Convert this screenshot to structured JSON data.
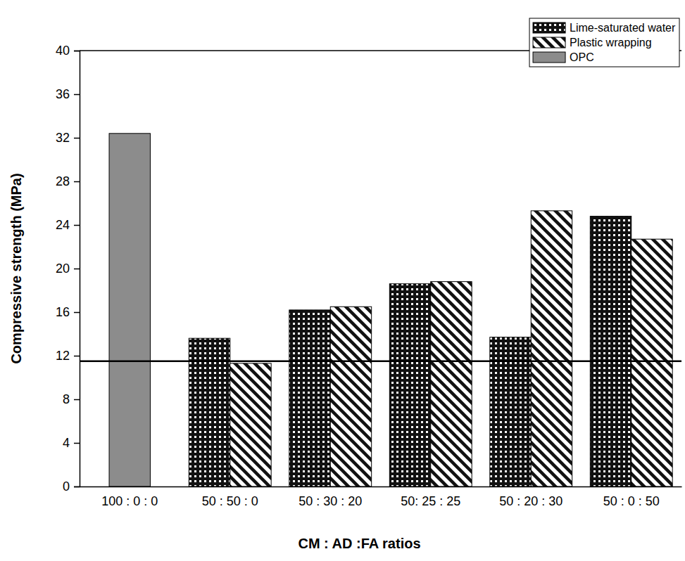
{
  "chart_data": {
    "type": "bar",
    "x_label": "CM : AD :FA  ratios",
    "y_label": "Compressive strength (MPa)",
    "categories": [
      "100 : 0 : 0",
      "50 : 50 : 0",
      "50 : 30 : 20",
      "50: 25 : 25",
      "50 : 20 : 30",
      "50 : 0 : 50"
    ],
    "series": [
      {
        "name": "Lime-saturated water",
        "color": "#111111",
        "values": [
          null,
          13.6,
          16.2,
          18.6,
          13.7,
          24.8
        ]
      },
      {
        "name": "Plastic wrapping",
        "color": "#111111",
        "values": [
          null,
          11.3,
          16.5,
          18.8,
          25.3,
          22.7
        ]
      },
      {
        "name": "OPC",
        "color": "#8c8c8c",
        "values": [
          32.4,
          null,
          null,
          null,
          null,
          null
        ]
      }
    ],
    "reference_line": {
      "value": 11.5
    },
    "ylim": [
      0,
      40
    ],
    "yticks": [
      0,
      4,
      8,
      12,
      16,
      20,
      24,
      28,
      32,
      36,
      40
    ],
    "legend": "top right",
    "grid": false
  }
}
